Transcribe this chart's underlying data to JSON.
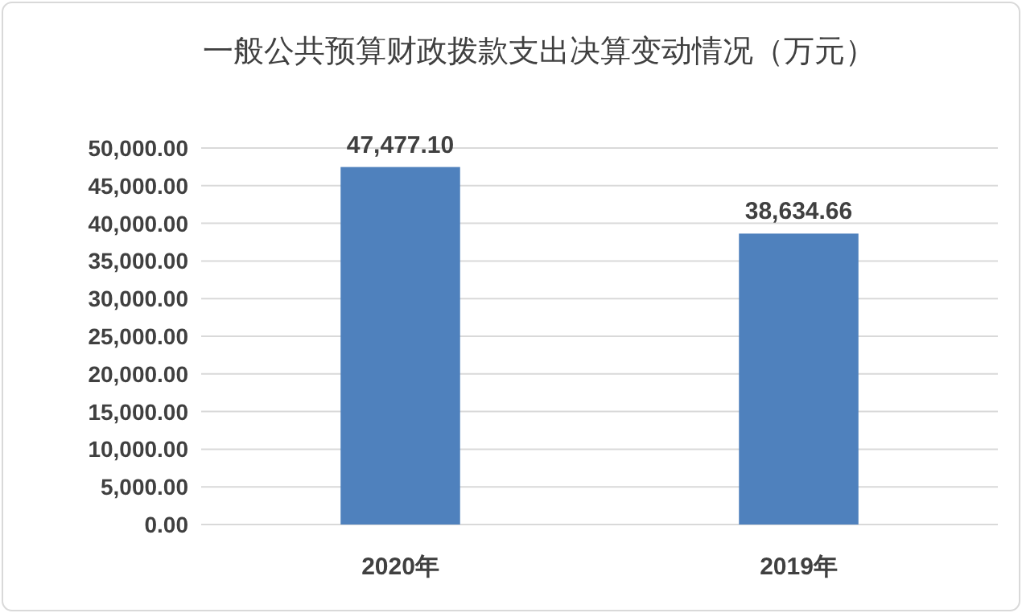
{
  "chart_data": {
    "type": "bar",
    "title": "一般公共预算财政拨款支出决算变动情况（万元）",
    "categories": [
      "2020年",
      "2019年"
    ],
    "values": [
      47477.1,
      38634.66
    ],
    "value_labels": [
      "47,477.10",
      "38,634.66"
    ],
    "color": "#4f81bd",
    "ylim": [
      0,
      50000
    ],
    "yticks": [
      {
        "value": 0,
        "label": "0.00"
      },
      {
        "value": 5000,
        "label": "5,000.00"
      },
      {
        "value": 10000,
        "label": "10,000.00"
      },
      {
        "value": 15000,
        "label": "15,000.00"
      },
      {
        "value": 20000,
        "label": "20,000.00"
      },
      {
        "value": 25000,
        "label": "25,000.00"
      },
      {
        "value": 30000,
        "label": "30,000.00"
      },
      {
        "value": 35000,
        "label": "35,000.00"
      },
      {
        "value": 40000,
        "label": "40,000.00"
      },
      {
        "value": 45000,
        "label": "45,000.00"
      },
      {
        "value": 50000,
        "label": "50,000.00"
      }
    ],
    "grid": "y"
  }
}
